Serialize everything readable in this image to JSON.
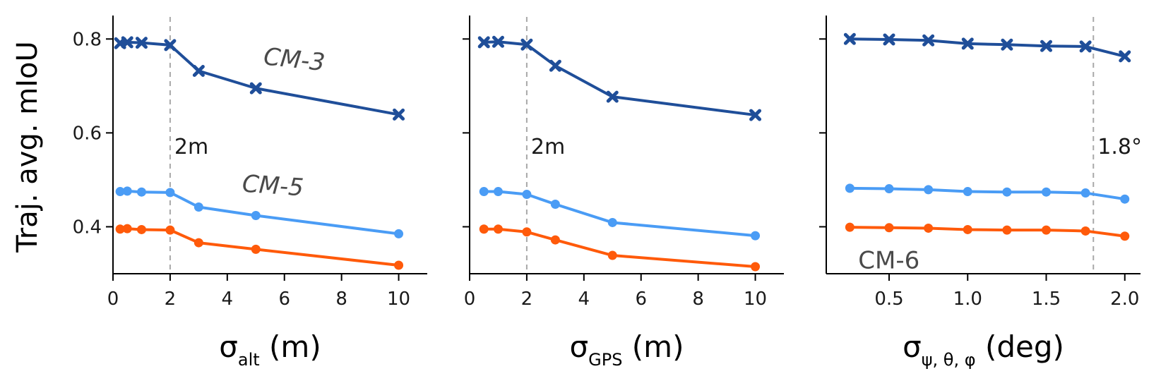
{
  "colors": {
    "cm3": "#1f4e99",
    "cm5": "#4a9cf5",
    "cm6": "#ff5a0a"
  },
  "y_title": "Traj. avg. mIoU",
  "chart_data": [
    {
      "type": "line",
      "xlabel_main": "σ",
      "xlabel_sub": "alt",
      "xlabel_unit": "(m)",
      "xlim": [
        0,
        11
      ],
      "ylim": [
        0.3,
        0.85
      ],
      "xticks": [
        0,
        2,
        4,
        6,
        8,
        10
      ],
      "xtick_labels": [
        "0",
        "2",
        "4",
        "6",
        "8",
        "10"
      ],
      "yticks": [
        0.4,
        0.6,
        0.8
      ],
      "ytick_labels": [
        "0.4",
        "0.6",
        "0.8"
      ],
      "vline": {
        "x": 2,
        "label": "2m"
      },
      "x": [
        0.25,
        0.5,
        1,
        2,
        3,
        5,
        10
      ],
      "series": [
        {
          "key": "cm3",
          "marker": "x",
          "label": "CM-3",
          "values": [
            0.791,
            0.793,
            0.792,
            0.787,
            0.732,
            0.695,
            0.639
          ]
        },
        {
          "key": "cm5",
          "marker": "o",
          "label": "CM-5",
          "values": [
            0.475,
            0.476,
            0.474,
            0.473,
            0.442,
            0.424,
            0.385
          ]
        },
        {
          "key": "cm6",
          "marker": "o",
          "label": "",
          "values": [
            0.395,
            0.396,
            0.394,
            0.393,
            0.366,
            0.352,
            0.318
          ]
        }
      ]
    },
    {
      "type": "line",
      "xlabel_main": "σ",
      "xlabel_sub": "GPS",
      "xlabel_unit": "(m)",
      "xlim": [
        0,
        11
      ],
      "ylim": [
        0.3,
        0.85
      ],
      "xticks": [
        0,
        2,
        4,
        6,
        8,
        10
      ],
      "xtick_labels": [
        "0",
        "2",
        "4",
        "6",
        "8",
        "10"
      ],
      "yticks": [
        0.4,
        0.6,
        0.8
      ],
      "ytick_labels": [
        "",
        "",
        ""
      ],
      "vline": {
        "x": 2,
        "label": "2m"
      },
      "x": [
        0.5,
        1,
        2,
        3,
        5,
        10
      ],
      "series": [
        {
          "key": "cm3",
          "marker": "x",
          "label": "",
          "values": [
            0.793,
            0.794,
            0.788,
            0.743,
            0.677,
            0.638
          ]
        },
        {
          "key": "cm5",
          "marker": "o",
          "label": "",
          "values": [
            0.475,
            0.475,
            0.469,
            0.448,
            0.409,
            0.381
          ]
        },
        {
          "key": "cm6",
          "marker": "o",
          "label": "",
          "values": [
            0.395,
            0.395,
            0.389,
            0.372,
            0.339,
            0.315
          ]
        }
      ]
    },
    {
      "type": "line",
      "xlabel_main": "σ",
      "xlabel_sub": "ψ, θ, φ",
      "xlabel_unit": "(deg)",
      "xlim": [
        0.1,
        2.1
      ],
      "ylim": [
        0.3,
        0.85
      ],
      "xticks": [
        0.5,
        1.0,
        1.5,
        2.0
      ],
      "xtick_labels": [
        "0.5",
        "1.0",
        "1.5",
        "2.0"
      ],
      "yticks": [
        0.4,
        0.6,
        0.8
      ],
      "ytick_labels": [
        "",
        "",
        ""
      ],
      "vline": {
        "x": 1.8,
        "label": "1.8°"
      },
      "x": [
        0.25,
        0.5,
        0.75,
        1.0,
        1.25,
        1.5,
        1.75,
        2.0
      ],
      "series": [
        {
          "key": "cm3",
          "marker": "x",
          "label": "",
          "values": [
            0.8,
            0.799,
            0.797,
            0.79,
            0.788,
            0.785,
            0.784,
            0.763
          ]
        },
        {
          "key": "cm5",
          "marker": "o",
          "label": "",
          "values": [
            0.482,
            0.481,
            0.479,
            0.475,
            0.474,
            0.474,
            0.472,
            0.459
          ]
        },
        {
          "key": "cm6",
          "marker": "o",
          "label": "CM-6",
          "values": [
            0.399,
            0.398,
            0.397,
            0.394,
            0.393,
            0.393,
            0.391,
            0.38
          ]
        }
      ]
    }
  ]
}
